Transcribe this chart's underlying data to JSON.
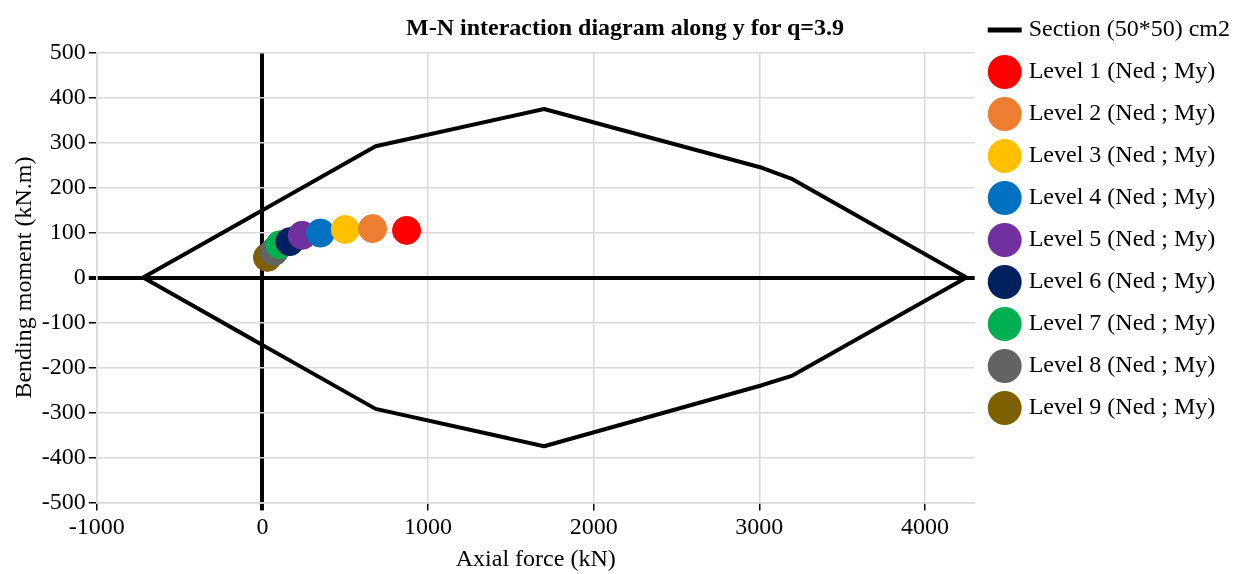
{
  "chart_data": {
    "type": "scatter",
    "title": "M-N interaction diagram along y for q=3.9",
    "xlabel": "Axial force (kN)",
    "ylabel": "Bending moment (kN.m)",
    "xlim": [
      -1000,
      4300
    ],
    "xticks": [
      -1000,
      0,
      1000,
      2000,
      3000,
      4000
    ],
    "ylim": [
      -500,
      500
    ],
    "yticks": [
      -500,
      -400,
      -300,
      -200,
      -100,
      0,
      100,
      200,
      300,
      400,
      500
    ],
    "grid": true,
    "legend": "right",
    "marker": "circle",
    "series": [
      {
        "name": "Section (50*50) cm2",
        "type": "line",
        "marker": "none",
        "line_style": "solid",
        "color": "#000000",
        "x": [
          -720,
          683,
          1700,
          3010,
          3200,
          4250
        ],
        "values": [
          0,
          292,
          375,
          245,
          219,
          0
        ]
      },
      {
        "type": "line",
        "marker": "none",
        "line_style": "solid",
        "color": "#000000",
        "x": [
          -720,
          683,
          1700,
          3010,
          3200,
          4250
        ],
        "values": [
          0,
          -292,
          -375,
          -240,
          -218,
          0
        ]
      },
      {
        "name": "Level 1 (Ned ; My)",
        "color": "#ff0000",
        "x": [
          870
        ],
        "values": [
          105
        ]
      },
      {
        "name": "Level 2 (Ned ; My)",
        "color": "#ed7d31",
        "x": [
          665
        ],
        "values": [
          109
        ]
      },
      {
        "name": "Level 3 (Ned ; My)",
        "color": "#ffc000",
        "x": [
          500
        ],
        "values": [
          107
        ]
      },
      {
        "name": "Level 4 (Ned ; My)",
        "color": "#0070c0",
        "x": [
          350
        ],
        "values": [
          99
        ]
      },
      {
        "name": "Level 5 (Ned ; My)",
        "color": "#7030a0",
        "x": [
          240
        ],
        "values": [
          94
        ]
      },
      {
        "name": "Level 6 (Ned ; My)",
        "color": "#002060",
        "x": [
          165
        ],
        "values": [
          80
        ]
      },
      {
        "name": "Level 7 (Ned ; My)",
        "color": "#00b050",
        "x": [
          105
        ],
        "values": [
          73
        ]
      },
      {
        "name": "Level 8 (Ned ; My)",
        "color": "#636363",
        "x": [
          70
        ],
        "values": [
          58
        ]
      },
      {
        "name": "Level 9 (Ned ; My)",
        "color": "#7f6000",
        "x": [
          30
        ],
        "values": [
          45
        ]
      }
    ]
  }
}
